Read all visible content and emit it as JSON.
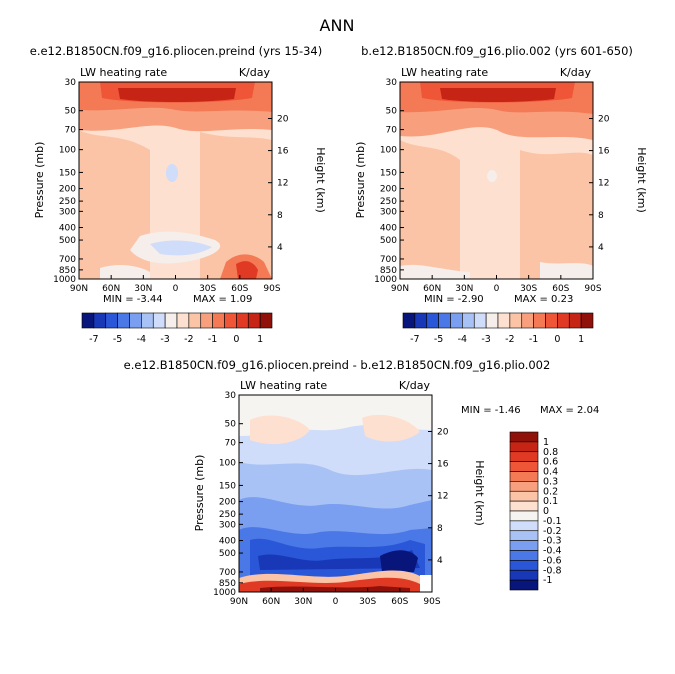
{
  "page_title": "ANN",
  "panels": [
    {
      "title": "e.e12.B1850CN.f09_g16.pliocen.preind (yrs 15-34)",
      "left_label": "LW heating rate",
      "right_label": "K/day",
      "min_label": "MIN = -3.44",
      "max_label": "MAX = 1.09"
    },
    {
      "title": "b.e12.B1850CN.f09_g16.plio.002 (yrs 601-650)",
      "left_label": "LW heating rate",
      "right_label": "K/day",
      "min_label": "MIN = -2.90",
      "max_label": "MAX = 0.23"
    },
    {
      "title": "e.e12.B1850CN.f09_g16.pliocen.preind - b.e12.B1850CN.f09_g16.plio.002",
      "left_label": "LW heating rate",
      "right_label": "K/day",
      "min_label": "MIN = -1.46",
      "max_label": "MAX = 2.04"
    }
  ],
  "chart_data": [
    {
      "type": "heatmap",
      "title": "e.e12.B1850CN.f09_g16.pliocen.preind (yrs 15-34)",
      "ylabel": "Pressure (mb)",
      "y2label": "Height (km)",
      "xticks": [
        "90N",
        "60N",
        "30N",
        "0",
        "30S",
        "60S",
        "90S"
      ],
      "yticks": [
        "30",
        "50",
        "70",
        "100",
        "150",
        "200",
        "250",
        "300",
        "400",
        "500",
        "700",
        "850",
        "1000"
      ],
      "y2ticks": [
        "20",
        "16",
        "12",
        "8",
        "4"
      ],
      "min": -3.44,
      "max": 1.09
    },
    {
      "type": "heatmap",
      "title": "b.e12.B1850CN.f09_g16.plio.002 (yrs 601-650)",
      "ylabel": "Pressure (mb)",
      "y2label": "Height (km)",
      "xticks": [
        "90N",
        "60N",
        "30N",
        "0",
        "30S",
        "60S",
        "90S"
      ],
      "yticks": [
        "30",
        "50",
        "70",
        "100",
        "150",
        "200",
        "250",
        "300",
        "400",
        "500",
        "700",
        "850",
        "1000"
      ],
      "y2ticks": [
        "20",
        "16",
        "12",
        "8",
        "4"
      ],
      "min": -2.9,
      "max": 0.23
    },
    {
      "type": "heatmap",
      "title": "e.e12.B1850CN.f09_g16.pliocen.preind - b.e12.B1850CN.f09_g16.plio.002",
      "ylabel": "Pressure (mb)",
      "y2label": "Height (km)",
      "xticks": [
        "90N",
        "60N",
        "30N",
        "0",
        "30S",
        "60S",
        "90S"
      ],
      "yticks": [
        "30",
        "50",
        "70",
        "100",
        "150",
        "200",
        "250",
        "300",
        "400",
        "500",
        "700",
        "850",
        "1000"
      ],
      "y2ticks": [
        "20",
        "16",
        "12",
        "8",
        "4"
      ],
      "min": -1.46,
      "max": 2.04
    }
  ],
  "colorbar_top": {
    "labels": [
      "-7",
      "-5",
      "-4",
      "-3",
      "-2",
      "-1",
      "0",
      "1"
    ],
    "colors": [
      "#08157a",
      "#1838b8",
      "#2a56d8",
      "#4a78e6",
      "#7a9ef0",
      "#a8c2f6",
      "#cfdcfa",
      "#f6eeea",
      "#fde0cf",
      "#fbc4a6",
      "#f8a07e",
      "#f47a56",
      "#ef5638",
      "#e13a24",
      "#c62414",
      "#8f1109"
    ]
  },
  "colorbar_diff": {
    "labels": [
      "1",
      "0.8",
      "0.6",
      "0.4",
      "0.3",
      "0.2",
      "0.1",
      "0",
      "-0.1",
      "-0.2",
      "-0.3",
      "-0.4",
      "-0.6",
      "-0.8",
      "-1"
    ],
    "colors": [
      "#8f1109",
      "#c62414",
      "#e13a24",
      "#ef5638",
      "#f47a56",
      "#f8a07e",
      "#fbc4a6",
      "#fde0cf",
      "#f6f4f0",
      "#cfdcfa",
      "#a8c2f6",
      "#7a9ef0",
      "#4a78e6",
      "#2a56d8",
      "#1838b8",
      "#08157a"
    ]
  }
}
